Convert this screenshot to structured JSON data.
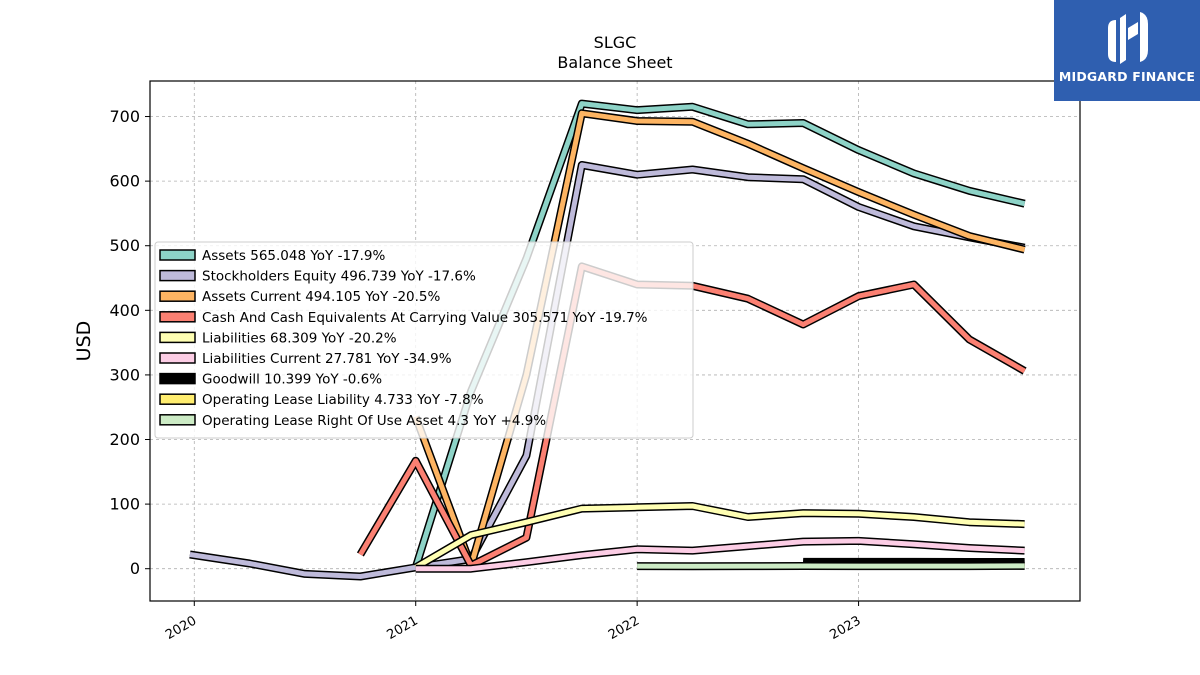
{
  "chart_data": {
    "type": "line",
    "title": "SLGC",
    "subtitle": "Balance  Sheet",
    "ylabel": "USD",
    "xlabel": "",
    "ylim": [
      -50,
      755
    ],
    "xlim": [
      2019.8,
      2024.0
    ],
    "yticks": [
      0,
      100,
      200,
      300,
      400,
      500,
      600,
      700
    ],
    "xticks": [
      {
        "value": 2020.0,
        "label": "2020"
      },
      {
        "value": 2021.0,
        "label": "2021"
      },
      {
        "value": 2022.0,
        "label": "2022"
      },
      {
        "value": 2023.0,
        "label": "2023"
      }
    ],
    "grid": true,
    "legend_position": "center-left",
    "series": [
      {
        "name": "Assets",
        "legend": "Assets  565.048 YoY -17.9%",
        "color": "#8dd3c7",
        "x": [
          2021.0,
          2021.25,
          2021.5,
          2021.75,
          2022.0,
          2022.25,
          2022.5,
          2022.75,
          2023.0,
          2023.25,
          2023.5,
          2023.75
        ],
        "y": [
          2,
          275,
          480,
          720,
          710,
          715,
          688,
          690,
          648,
          612,
          585,
          565
        ]
      },
      {
        "name": "Stockholders Equity",
        "legend": "Stockholders Equity  496.739 YoY -17.6%",
        "color": "#bebada",
        "x": [
          2019.98,
          2020.25,
          2020.5,
          2020.75,
          2021.0,
          2021.25,
          2021.5,
          2021.75,
          2022.0,
          2022.25,
          2022.5,
          2022.75,
          2023.0,
          2023.25,
          2023.5,
          2023.75
        ],
        "y": [
          22,
          8,
          -8,
          -12,
          2,
          15,
          175,
          625,
          610,
          618,
          606,
          603,
          560,
          530,
          513,
          497
        ]
      },
      {
        "name": "Assets Current",
        "legend": "Assets Current  494.105 YoY -20.5%",
        "color": "#fdb462",
        "x": [
          2021.0,
          2021.25,
          2021.5,
          2021.75,
          2022.0,
          2022.25,
          2022.5,
          2022.75,
          2023.0,
          2023.25,
          2023.5,
          2023.75
        ],
        "y": [
          235,
          5,
          300,
          705,
          693,
          692,
          658,
          620,
          583,
          548,
          515,
          494
        ]
      },
      {
        "name": "Cash And Cash Equivalents At Carrying Value",
        "legend": "Cash And Cash Equivalents At Carrying Value  305.571 YoY -19.7%",
        "color": "#fb8072",
        "x": [
          2020.75,
          2021.0,
          2021.25,
          2021.5,
          2021.75,
          2022.0,
          2022.25,
          2022.5,
          2022.75,
          2023.0,
          2023.25,
          2023.5,
          2023.75
        ],
        "y": [
          22,
          167,
          5,
          48,
          468,
          440,
          438,
          418,
          378,
          422,
          440,
          355,
          306
        ]
      },
      {
        "name": "Liabilities",
        "legend": "Liabilities  68.309 YoY -20.2%",
        "color": "#ffffb3",
        "x": [
          2021.0,
          2021.25,
          2021.5,
          2021.75,
          2022.0,
          2022.25,
          2022.5,
          2022.75,
          2023.0,
          2023.25,
          2023.5,
          2023.75
        ],
        "y": [
          2,
          52,
          72,
          93,
          95,
          97,
          80,
          86,
          85,
          80,
          72,
          69
        ]
      },
      {
        "name": "Liabilities Current",
        "legend": "Liabilities Current  27.781 YoY -34.9%",
        "color": "#fccde5",
        "x": [
          2021.0,
          2021.25,
          2021.5,
          2021.75,
          2022.0,
          2022.25,
          2022.5,
          2022.75,
          2023.0,
          2023.25,
          2023.5,
          2023.75
        ],
        "y": [
          0,
          0,
          10,
          21,
          30,
          28,
          35,
          42,
          43,
          38,
          32,
          28
        ]
      },
      {
        "name": "Goodwill",
        "legend": "Goodwill  10.399 YoY -0.6%",
        "color": "#000000",
        "x": [
          2022.75,
          2023.0,
          2023.25,
          2023.5,
          2023.75
        ],
        "y": [
          10.5,
          10.5,
          10.5,
          10.4,
          10.4
        ]
      },
      {
        "name": "Operating Lease Liability",
        "legend": "Operating Lease Liability  4.733 YoY -7.8%",
        "color": "#ffed6f",
        "x": [
          2022.75,
          2023.0,
          2023.25,
          2023.5,
          2023.75
        ],
        "y": [
          5.2,
          5.1,
          5.0,
          4.9,
          4.7
        ]
      },
      {
        "name": "Operating Lease Right Of Use Asset",
        "legend": "Operating Lease Right Of Use Asset  4.3 YoY +4.9%",
        "color": "#ccebc5",
        "x": [
          2022.0,
          2022.25,
          2022.5,
          2022.75,
          2023.0,
          2023.25,
          2023.5,
          2023.75
        ],
        "y": [
          4.0,
          3.8,
          4.1,
          4.2,
          4.1,
          4.1,
          4.0,
          4.3
        ]
      }
    ]
  },
  "logo": {
    "text": "MIDGARD FINANCE",
    "color": "#2f5fb0"
  }
}
